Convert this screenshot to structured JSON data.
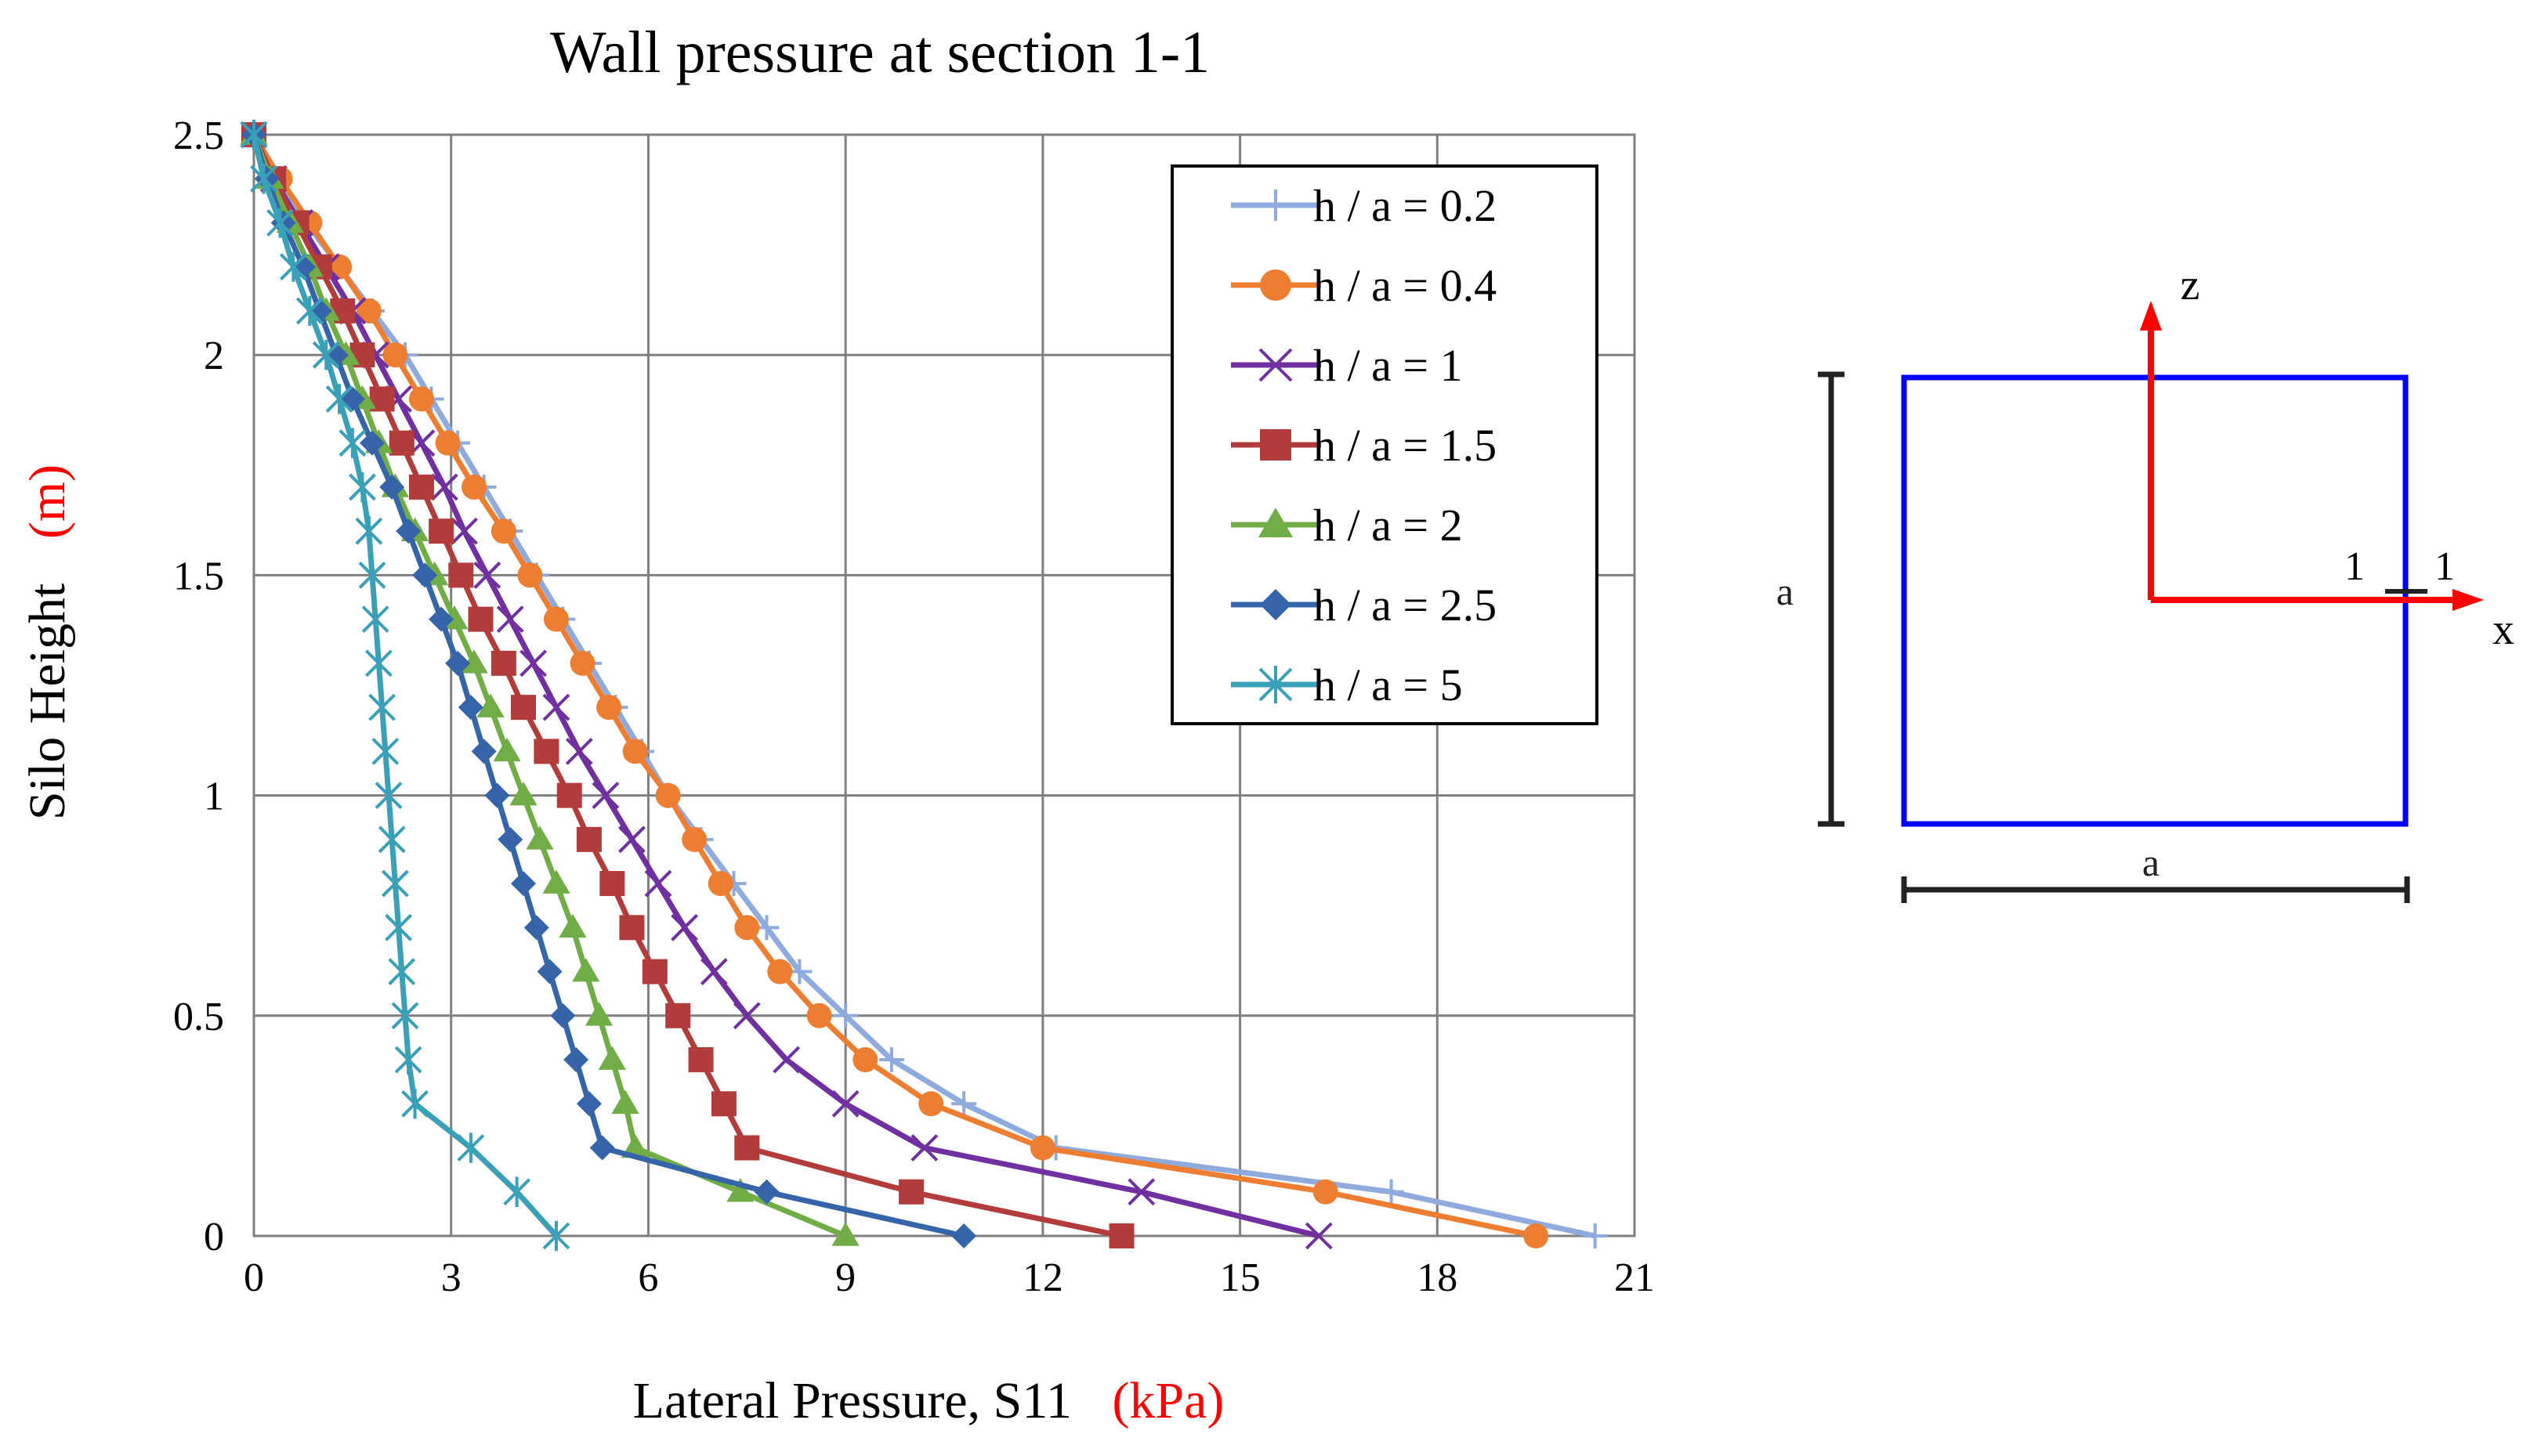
{
  "chart_data": {
    "type": "line",
    "title": "Wall pressure at section 1-1",
    "xlabel_main": "Lateral Pressure,  S11",
    "xlabel_unit": "(kPa)",
    "ylabel_main": "Silo  Height",
    "ylabel_unit": "(m)",
    "xlim": [
      0,
      21
    ],
    "ylim": [
      0,
      2.5
    ],
    "xticks": [
      0,
      3,
      6,
      9,
      12,
      15,
      18,
      21
    ],
    "yticks": [
      0,
      0.5,
      1,
      1.5,
      2,
      2.5
    ],
    "xtick_labels": [
      "0",
      "3",
      "6",
      "9",
      "12",
      "15",
      "18",
      "21"
    ],
    "ytick_labels": [
      "0",
      "0.5",
      "1",
      "1.5",
      "2",
      "2.5"
    ],
    "grid": true,
    "legend_position": "top-right",
    "series": [
      {
        "name": "h / a = 0.2",
        "color": "#8faadc",
        "marker": "plus",
        "points": [
          [
            0,
            2.5
          ],
          [
            0.35,
            2.4
          ],
          [
            0.8,
            2.3
          ],
          [
            1.3,
            2.2
          ],
          [
            1.8,
            2.1
          ],
          [
            2.3,
            2.0
          ],
          [
            2.7,
            1.9
          ],
          [
            3.1,
            1.8
          ],
          [
            3.5,
            1.7
          ],
          [
            3.9,
            1.6
          ],
          [
            4.3,
            1.5
          ],
          [
            4.7,
            1.4
          ],
          [
            5.1,
            1.3
          ],
          [
            5.5,
            1.2
          ],
          [
            5.9,
            1.1
          ],
          [
            6.3,
            1.0
          ],
          [
            6.8,
            0.9
          ],
          [
            7.3,
            0.8
          ],
          [
            7.8,
            0.7
          ],
          [
            8.3,
            0.6
          ],
          [
            9.0,
            0.5
          ],
          [
            9.7,
            0.4
          ],
          [
            10.8,
            0.3
          ],
          [
            12.2,
            0.2
          ],
          [
            17.3,
            0.1
          ],
          [
            20.4,
            0
          ]
        ]
      },
      {
        "name": "h / a = 0.4",
        "color": "#ed7d31",
        "marker": "circle",
        "points": [
          [
            0,
            2.5
          ],
          [
            0.4,
            2.4
          ],
          [
            0.85,
            2.3
          ],
          [
            1.3,
            2.2
          ],
          [
            1.75,
            2.1
          ],
          [
            2.15,
            2.0
          ],
          [
            2.55,
            1.9
          ],
          [
            2.95,
            1.8
          ],
          [
            3.35,
            1.7
          ],
          [
            3.8,
            1.6
          ],
          [
            4.2,
            1.5
          ],
          [
            4.6,
            1.4
          ],
          [
            5.0,
            1.3
          ],
          [
            5.4,
            1.2
          ],
          [
            5.8,
            1.1
          ],
          [
            6.3,
            1.0
          ],
          [
            6.7,
            0.9
          ],
          [
            7.1,
            0.8
          ],
          [
            7.5,
            0.7
          ],
          [
            8.0,
            0.6
          ],
          [
            8.6,
            0.5
          ],
          [
            9.3,
            0.4
          ],
          [
            10.3,
            0.3
          ],
          [
            12.0,
            0.2
          ],
          [
            16.3,
            0.1
          ],
          [
            19.5,
            0
          ]
        ]
      },
      {
        "name": "h / a = 1",
        "color": "#7030a0",
        "marker": "x",
        "points": [
          [
            0,
            2.5
          ],
          [
            0.3,
            2.4
          ],
          [
            0.7,
            2.3
          ],
          [
            1.1,
            2.2
          ],
          [
            1.5,
            2.1
          ],
          [
            1.85,
            2.0
          ],
          [
            2.2,
            1.9
          ],
          [
            2.55,
            1.8
          ],
          [
            2.9,
            1.7
          ],
          [
            3.2,
            1.6
          ],
          [
            3.55,
            1.5
          ],
          [
            3.9,
            1.4
          ],
          [
            4.25,
            1.3
          ],
          [
            4.6,
            1.2
          ],
          [
            4.95,
            1.1
          ],
          [
            5.35,
            1.0
          ],
          [
            5.75,
            0.9
          ],
          [
            6.15,
            0.8
          ],
          [
            6.55,
            0.7
          ],
          [
            7.0,
            0.6
          ],
          [
            7.5,
            0.5
          ],
          [
            8.1,
            0.4
          ],
          [
            9.0,
            0.3
          ],
          [
            10.2,
            0.2
          ],
          [
            13.5,
            0.1
          ],
          [
            16.2,
            0
          ]
        ]
      },
      {
        "name": "h / a = 1.5",
        "color": "#b23c3c",
        "marker": "square",
        "points": [
          [
            0,
            2.5
          ],
          [
            0.3,
            2.4
          ],
          [
            0.65,
            2.3
          ],
          [
            1.0,
            2.2
          ],
          [
            1.35,
            2.1
          ],
          [
            1.65,
            2.0
          ],
          [
            1.95,
            1.9
          ],
          [
            2.25,
            1.8
          ],
          [
            2.55,
            1.7
          ],
          [
            2.85,
            1.6
          ],
          [
            3.15,
            1.5
          ],
          [
            3.45,
            1.4
          ],
          [
            3.8,
            1.3
          ],
          [
            4.1,
            1.2
          ],
          [
            4.45,
            1.1
          ],
          [
            4.8,
            1.0
          ],
          [
            5.1,
            0.9
          ],
          [
            5.45,
            0.8
          ],
          [
            5.75,
            0.7
          ],
          [
            6.1,
            0.6
          ],
          [
            6.45,
            0.5
          ],
          [
            6.8,
            0.4
          ],
          [
            7.15,
            0.3
          ],
          [
            7.5,
            0.2
          ],
          [
            10.0,
            0.1
          ],
          [
            13.2,
            0
          ]
        ]
      },
      {
        "name": "h / a = 2",
        "color": "#70ad47",
        "marker": "triangle",
        "points": [
          [
            0,
            2.5
          ],
          [
            0.25,
            2.4
          ],
          [
            0.55,
            2.3
          ],
          [
            0.85,
            2.2
          ],
          [
            1.1,
            2.1
          ],
          [
            1.4,
            2.0
          ],
          [
            1.65,
            1.9
          ],
          [
            1.9,
            1.8
          ],
          [
            2.15,
            1.7
          ],
          [
            2.45,
            1.6
          ],
          [
            2.75,
            1.5
          ],
          [
            3.05,
            1.4
          ],
          [
            3.35,
            1.3
          ],
          [
            3.6,
            1.2
          ],
          [
            3.85,
            1.1
          ],
          [
            4.1,
            1.0
          ],
          [
            4.35,
            0.9
          ],
          [
            4.6,
            0.8
          ],
          [
            4.85,
            0.7
          ],
          [
            5.05,
            0.6
          ],
          [
            5.25,
            0.5
          ],
          [
            5.45,
            0.4
          ],
          [
            5.65,
            0.3
          ],
          [
            5.8,
            0.2
          ],
          [
            7.4,
            0.1
          ],
          [
            9.0,
            0
          ]
        ]
      },
      {
        "name": "h / a = 2.5",
        "color": "#3565a8",
        "marker": "diamond",
        "points": [
          [
            0,
            2.5
          ],
          [
            0.2,
            2.4
          ],
          [
            0.45,
            2.3
          ],
          [
            0.75,
            2.2
          ],
          [
            1.0,
            2.1
          ],
          [
            1.25,
            2.0
          ],
          [
            1.5,
            1.9
          ],
          [
            1.8,
            1.8
          ],
          [
            2.1,
            1.7
          ],
          [
            2.35,
            1.6
          ],
          [
            2.6,
            1.5
          ],
          [
            2.85,
            1.4
          ],
          [
            3.1,
            1.3
          ],
          [
            3.3,
            1.2
          ],
          [
            3.5,
            1.1
          ],
          [
            3.7,
            1.0
          ],
          [
            3.9,
            0.9
          ],
          [
            4.1,
            0.8
          ],
          [
            4.3,
            0.7
          ],
          [
            4.5,
            0.6
          ],
          [
            4.7,
            0.5
          ],
          [
            4.9,
            0.4
          ],
          [
            5.1,
            0.3
          ],
          [
            5.3,
            0.2
          ],
          [
            7.8,
            0.1
          ],
          [
            10.8,
            0
          ]
        ]
      },
      {
        "name": "h / a = 5",
        "color": "#3aa0b8",
        "marker": "star",
        "points": [
          [
            0,
            2.5
          ],
          [
            0.15,
            2.4
          ],
          [
            0.4,
            2.3
          ],
          [
            0.6,
            2.2
          ],
          [
            0.85,
            2.1
          ],
          [
            1.1,
            2.0
          ],
          [
            1.3,
            1.9
          ],
          [
            1.5,
            1.8
          ],
          [
            1.65,
            1.7
          ],
          [
            1.75,
            1.6
          ],
          [
            1.8,
            1.5
          ],
          [
            1.85,
            1.4
          ],
          [
            1.9,
            1.3
          ],
          [
            1.95,
            1.2
          ],
          [
            2.0,
            1.1
          ],
          [
            2.05,
            1.0
          ],
          [
            2.1,
            0.9
          ],
          [
            2.15,
            0.8
          ],
          [
            2.2,
            0.7
          ],
          [
            2.25,
            0.6
          ],
          [
            2.3,
            0.5
          ],
          [
            2.35,
            0.4
          ],
          [
            2.45,
            0.3
          ],
          [
            3.3,
            0.2
          ],
          [
            4.0,
            0.1
          ],
          [
            4.6,
            0
          ]
        ]
      }
    ]
  },
  "diagram": {
    "z_label": "z",
    "x_label": "x",
    "side_label_left": "a",
    "side_label_bottom": "a",
    "section_label_left": "1",
    "section_label_right": "1",
    "box_color": "#0000ff",
    "axis_color": "#ff0000",
    "dim_color": "#222222"
  },
  "colors": {
    "unit_text": "#ff0000",
    "grid": "#7f7f7f",
    "axis": "#7f7f7f"
  }
}
